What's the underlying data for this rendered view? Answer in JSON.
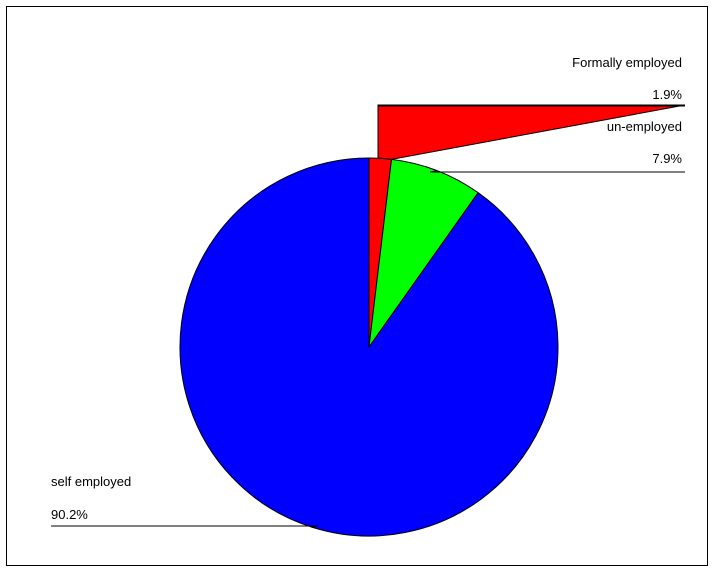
{
  "chart_data": {
    "type": "pie",
    "title": "",
    "slices": [
      {
        "name": "Formally employed",
        "percent_label": "1.9%",
        "value": 1.9,
        "color": "#ff0000"
      },
      {
        "name": "un-employed",
        "percent_label": "7.9%",
        "value": 7.9,
        "color": "#00ff00"
      },
      {
        "name": "self employed",
        "percent_label": "90.2%",
        "value": 90.2,
        "color": "#0000ff"
      }
    ],
    "legend": "none",
    "label_style": "name above percentage, with leader lines",
    "start_angle": "12 o'clock, clockwise",
    "border_color": "#000000"
  }
}
